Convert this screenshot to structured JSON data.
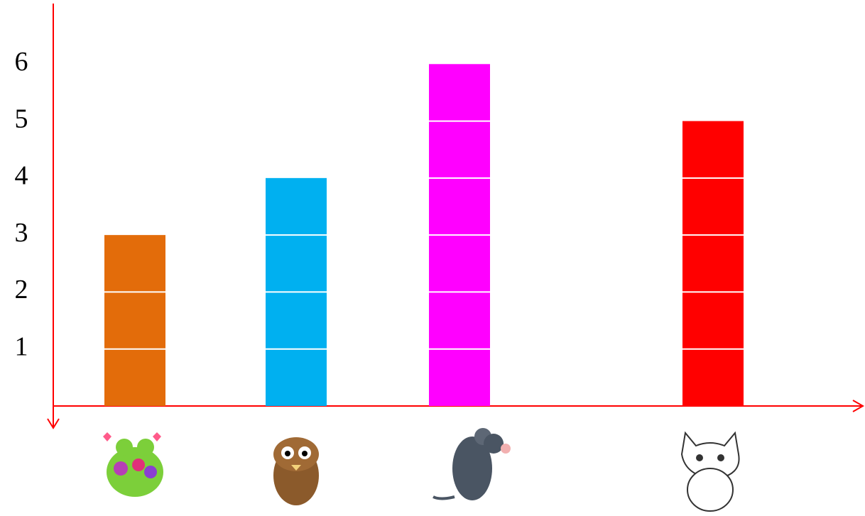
{
  "chart_data": {
    "type": "bar",
    "categories": [
      null,
      null,
      null,
      null
    ],
    "values": [
      3,
      4,
      6,
      5
    ],
    "colors": [
      "#e36c0a",
      "#00b0f0",
      "#ff00ff",
      "#ff0000"
    ],
    "ylim": [
      0,
      7
    ],
    "yticks": [
      1,
      2,
      3,
      4,
      5,
      6
    ],
    "axis_color": "#ff0000"
  }
}
